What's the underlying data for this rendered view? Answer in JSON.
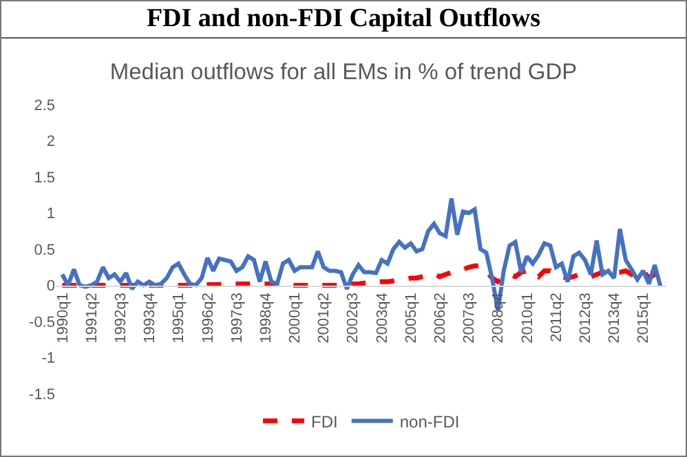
{
  "chart_data": {
    "type": "line",
    "title": "FDI and non-FDI Capital Outflows",
    "subtitle": "Median outflows for all EMs in % of trend GDP",
    "categories": [
      "1990q1",
      null,
      null,
      null,
      null,
      "1991q2",
      null,
      null,
      null,
      null,
      "1992q3",
      null,
      null,
      null,
      null,
      "1993q4",
      null,
      null,
      null,
      null,
      "1995q1",
      null,
      null,
      null,
      null,
      "1996q2",
      null,
      null,
      null,
      null,
      "1997q3",
      null,
      null,
      null,
      null,
      "1998q4",
      null,
      null,
      null,
      null,
      "2000q1",
      null,
      null,
      null,
      null,
      "2001q2",
      null,
      null,
      null,
      null,
      "2002q3",
      null,
      null,
      null,
      null,
      "2003q4",
      null,
      null,
      null,
      null,
      "2005q1",
      null,
      null,
      null,
      null,
      "2006q2",
      null,
      null,
      null,
      null,
      "2007q3",
      null,
      null,
      null,
      null,
      "2008q4",
      null,
      null,
      null,
      null,
      "2010q1",
      null,
      null,
      null,
      null,
      "2011q2",
      null,
      null,
      null,
      null,
      "2012q3",
      null,
      null,
      null,
      null,
      "2013q4",
      null,
      null,
      null,
      null,
      "2015q1",
      null,
      null,
      null
    ],
    "series": [
      {
        "name": "FDI",
        "color": "#ff0000",
        "line_style": "dashed",
        "values": [
          0,
          0,
          0,
          0,
          0,
          0,
          0,
          0,
          0,
          0,
          0,
          0,
          0,
          0,
          0,
          0,
          0,
          0,
          0,
          0,
          0,
          0,
          0,
          0,
          0.01,
          0.01,
          0.01,
          0.01,
          0.02,
          0.02,
          0.02,
          0.02,
          0.02,
          0.02,
          0.02,
          0.02,
          0.02,
          0.02,
          0.01,
          0.01,
          0,
          0,
          0,
          0,
          0,
          0,
          0,
          0,
          0,
          0.01,
          0.02,
          0.02,
          0.03,
          0.03,
          0.04,
          0.05,
          0.05,
          0.06,
          0.07,
          0.08,
          0.1,
          0.1,
          0.12,
          0.14,
          0.15,
          0.12,
          0.15,
          0.18,
          0.2,
          0.22,
          0.25,
          0.27,
          0.27,
          0.2,
          0.1,
          0.05,
          0.1,
          0.15,
          0.12,
          0.18,
          0.2,
          0.18,
          0.12,
          0.2,
          0.2,
          0.15,
          0.12,
          0.1,
          0.12,
          0.15,
          0.15,
          0.12,
          0.15,
          0.18,
          0.2,
          0.18,
          0.18,
          0.2,
          0.15,
          0.18,
          0.2,
          0.1,
          0.15,
          0.05
        ]
      },
      {
        "name": "non-FDI",
        "color": "#4472c4",
        "line_style": "solid",
        "values": [
          0.15,
          0,
          0.22,
          0,
          -0.02,
          0,
          0.05,
          0.25,
          0.1,
          0.15,
          0.05,
          0.17,
          -0.05,
          0.05,
          0,
          0.05,
          0,
          0.02,
          0.1,
          0.25,
          0.3,
          0.15,
          0.02,
          0,
          0.1,
          0.38,
          0.2,
          0.37,
          0.35,
          0.33,
          0.2,
          0.25,
          0.4,
          0.35,
          0.05,
          0.33,
          0.05,
          0.02,
          0.3,
          0.35,
          0.2,
          0.25,
          0.25,
          0.25,
          0.47,
          0.25,
          0.2,
          0.2,
          0.18,
          -0.05,
          0.15,
          0.28,
          0.18,
          0.18,
          0.17,
          0.35,
          0.3,
          0.5,
          0.6,
          0.52,
          0.58,
          0.47,
          0.5,
          0.75,
          0.85,
          0.72,
          0.68,
          1.2,
          0.7,
          1.02,
          1.0,
          1.05,
          0.5,
          0.45,
          0.1,
          -0.35,
          0.2,
          0.55,
          0.6,
          0.18,
          0.4,
          0.3,
          0.42,
          0.58,
          0.55,
          0.25,
          0.3,
          0.05,
          0.4,
          0.45,
          0.35,
          0.15,
          0.62,
          0.15,
          0.2,
          0.1,
          0.78,
          0.35,
          0.22,
          0.08,
          0.2,
          0.02,
          0.28,
          -0.02
        ]
      }
    ],
    "ylim": [
      -1.5,
      2.5
    ],
    "yticks": [
      -1.5,
      -1,
      -0.5,
      0,
      0.5,
      1,
      1.5,
      2,
      2.5
    ],
    "grid": false,
    "legend": "bottom",
    "marker": "none"
  }
}
